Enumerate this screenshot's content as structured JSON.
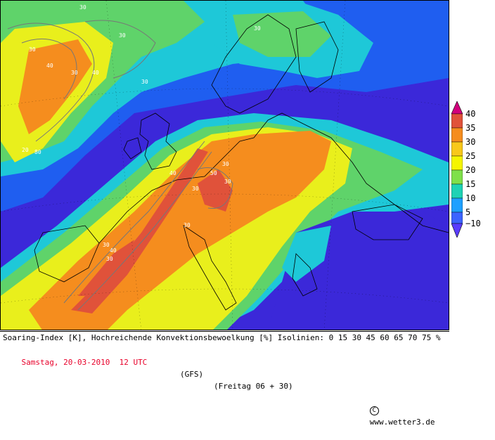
{
  "caption": {
    "line1": "Soaring-Index [K], Hochreichende Konvektionsbewoelkung [%] Isolinien: 0 15 30 45 60 65 70 75 %",
    "date": "Samstag, 20-03-2010  12 UTC",
    "model": "(GFS)",
    "run": "(Freitag 06 + 30)",
    "copyright_symbol": "C",
    "site": "www.wetter3.de"
  },
  "legend": {
    "labels": [
      "40",
      "35",
      "30",
      "25",
      "20",
      "15",
      "10",
      "5",
      "−10"
    ],
    "colors": [
      "#d2007d",
      "#e0523a",
      "#f58d1e",
      "#f8c81a",
      "#f5f500",
      "#7fe04a",
      "#1ed2b4",
      "#1ea0ff",
      "#5a3cff"
    ]
  },
  "map": {
    "palette": {
      "deep_blue": "#3b28d9",
      "blue": "#1f5ef0",
      "cyan": "#1ec8d8",
      "green": "#5fd36a",
      "yellow": "#e9ef1c",
      "orange": "#f58d1e",
      "dark_orange": "#e0523a"
    },
    "isoline_labels": [
      "30",
      "30",
      "30",
      "30",
      "40",
      "30",
      "20",
      "80",
      "40",
      "30",
      "30",
      "40",
      "30",
      "50",
      "30",
      "30",
      "30",
      "30",
      "40"
    ]
  }
}
